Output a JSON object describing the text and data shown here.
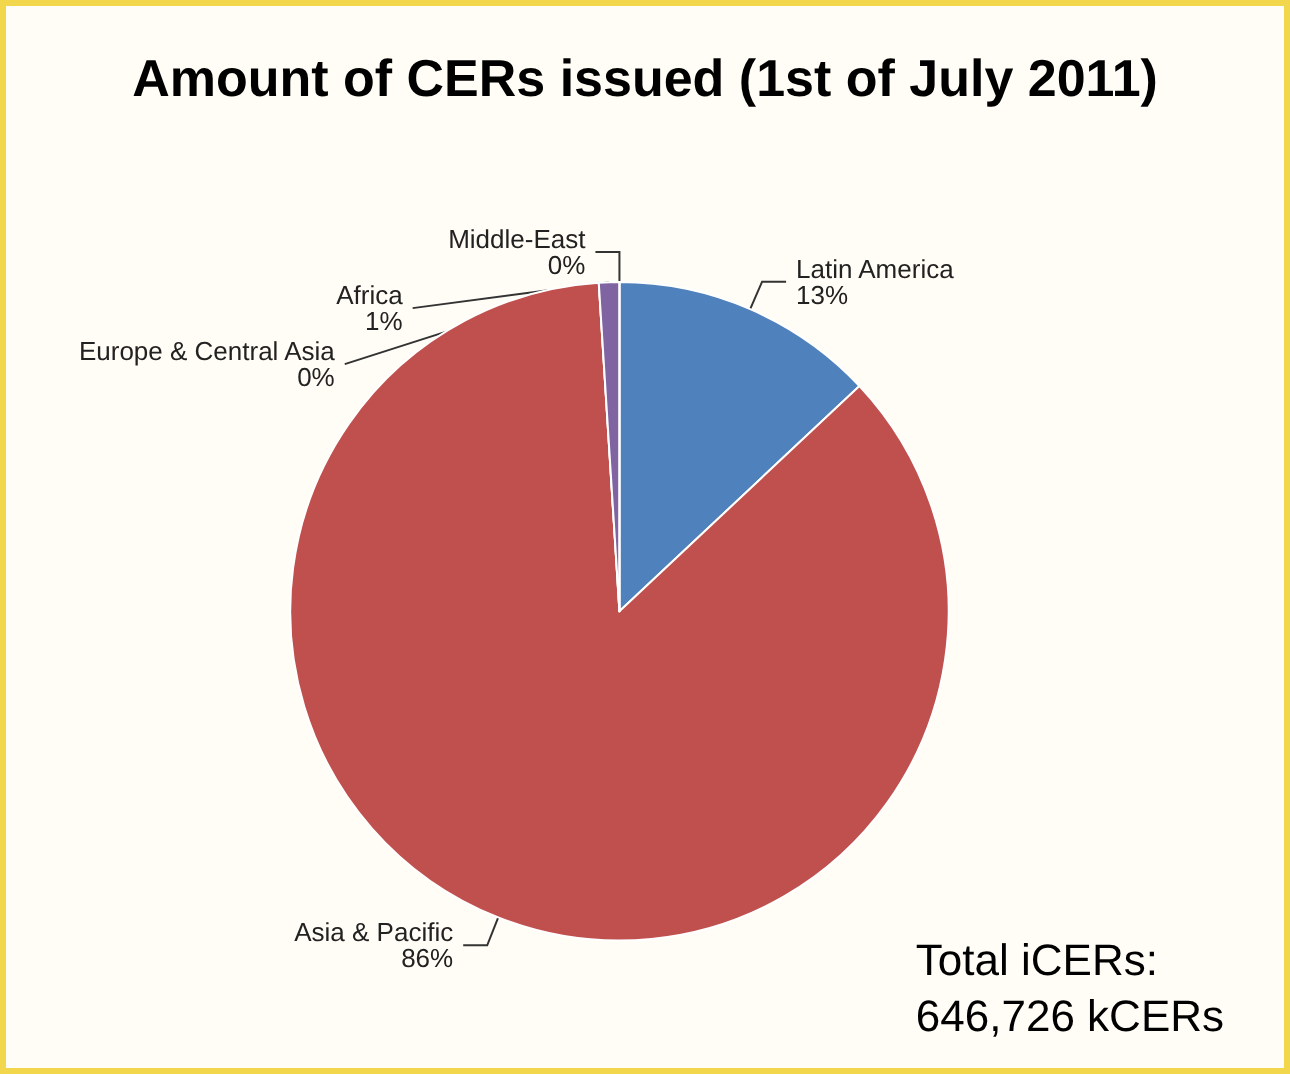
{
  "chart_data": {
    "type": "pie",
    "title": "Amount of CERs issued (1st of July 2011)",
    "categories": [
      "Latin America",
      "Asia & Pacific",
      "Europe & Central Asia",
      "Africa",
      "Middle-East"
    ],
    "values": [
      13,
      86,
      0,
      1,
      0
    ],
    "colors": [
      "#4f81bd",
      "#c0504d",
      "#9bbb59",
      "#8064a2",
      "#4bacc6"
    ],
    "value_labels": [
      "13%",
      "86%",
      "0%",
      "1%",
      "0%"
    ],
    "legend": false,
    "annotations": [
      "Total iCERs:\n646,726 kCERs"
    ]
  }
}
